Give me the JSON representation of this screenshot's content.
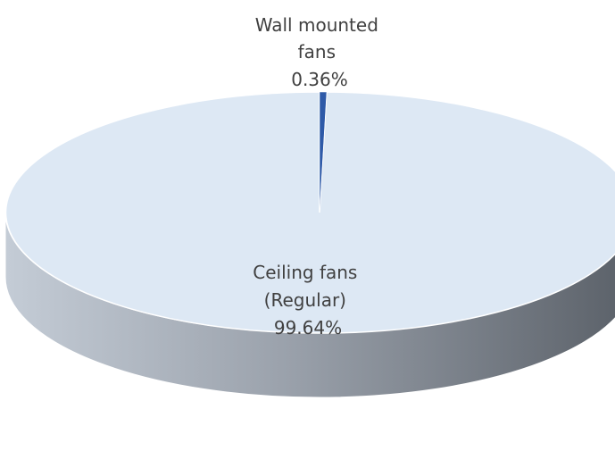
{
  "chart_data": {
    "type": "pie",
    "title": "",
    "categories": [
      "Wall mounted fans",
      "Ceiling fans (Regular)"
    ],
    "values": [
      0.36,
      99.64
    ],
    "label_lines": [
      [
        "Wall mounted",
        "fans",
        "0.36%"
      ],
      [
        "Ceiling fans",
        "(Regular)",
        "99.64%"
      ]
    ],
    "colors": {
      "wall_mounted": "#2e5aa8",
      "ceiling_regular": "#dde8f4",
      "side_light": "#c4ccd6",
      "side_dark": "#5a6068"
    },
    "style": "3d-pie",
    "legend": "none"
  }
}
